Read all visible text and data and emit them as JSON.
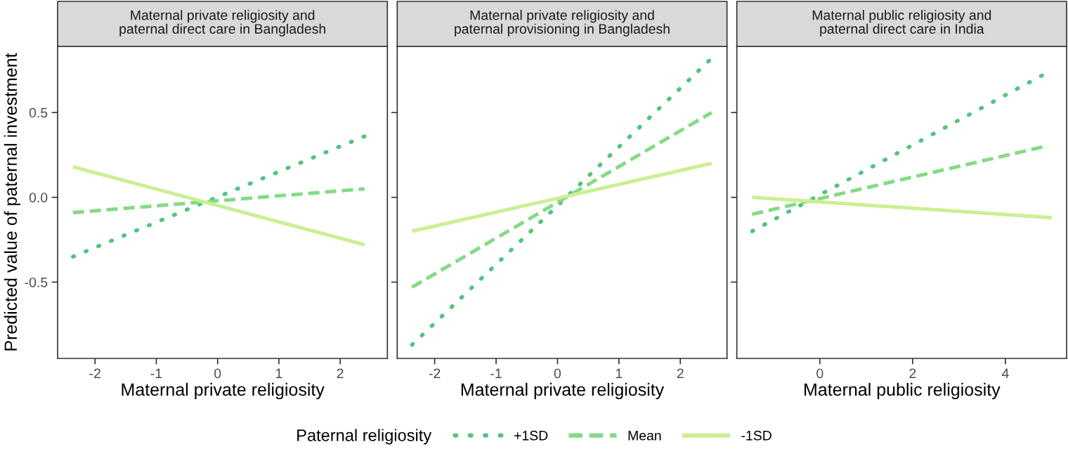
{
  "chart_data": [
    {
      "type": "line",
      "title": "Maternal private religiosity and\npaternal direct care in Bangladesh",
      "xlabel": "Maternal private religiosity",
      "ylabel": "Predicted value of paternal investment",
      "legend": "bottom",
      "legend_title": "Paternal religiosity",
      "xlim": [
        -2.61,
        2.77
      ],
      "xticks": [
        -2,
        -1,
        0,
        1,
        2
      ],
      "ylim": [
        -0.95,
        0.89
      ],
      "yticks": [
        -0.5,
        {
          "value": 0,
          "label": "0.0"
        },
        0.5
      ],
      "series": [
        {
          "name": "+1SD",
          "color": "#52c47c",
          "line_style": "dotted",
          "x": [
            -2.36,
            2.4
          ],
          "values": [
            -0.35,
            0.36
          ]
        },
        {
          "name": "Mean",
          "color": "#85da86",
          "line_style": "dashed",
          "x": [
            -2.36,
            2.4
          ],
          "values": [
            -0.09,
            0.05
          ]
        },
        {
          "name": "-1SD",
          "color": "#cbef92",
          "line_style": "solid",
          "x": [
            -2.36,
            2.4
          ],
          "values": [
            0.18,
            -0.28
          ]
        }
      ]
    },
    {
      "type": "line",
      "title": "Maternal private religiosity and\npaternal provisioning in Bangladesh",
      "xlabel": "Maternal private religiosity",
      "tick_labels": "x",
      "xlim": [
        -2.61,
        2.76
      ],
      "xticks": [
        -2,
        -1,
        0,
        1,
        2
      ],
      "ylim": [
        -0.95,
        0.89
      ],
      "series": [
        {
          "color": "#52c47c",
          "line_style": "dotted",
          "x": [
            -2.37,
            2.51
          ],
          "values": [
            -0.87,
            0.82
          ]
        },
        {
          "color": "#85da86",
          "line_style": "dashed",
          "x": [
            -2.37,
            2.51
          ],
          "values": [
            -0.53,
            0.5
          ]
        },
        {
          "color": "#cbef92",
          "line_style": "solid",
          "x": [
            -2.37,
            2.51
          ],
          "values": [
            -0.2,
            0.2
          ]
        }
      ]
    },
    {
      "type": "line",
      "title": "Maternal public religiosity and\npaternal direct care in India",
      "xlabel": "Maternal public religiosity",
      "tick_labels": "x",
      "xlim": [
        -1.79,
        5.32
      ],
      "xticks": [
        0,
        2,
        4
      ],
      "ylim": [
        -0.95,
        0.89
      ],
      "series": [
        {
          "color": "#52c47c",
          "line_style": "dotted",
          "x": [
            -1.46,
            4.8
          ],
          "values": [
            -0.2,
            0.72
          ]
        },
        {
          "color": "#85da86",
          "line_style": "dashed",
          "x": [
            -1.46,
            4.85
          ],
          "values": [
            -0.1,
            0.3
          ]
        },
        {
          "color": "#cbef92",
          "line_style": "solid",
          "x": [
            -1.46,
            5.0
          ],
          "values": [
            0.0,
            -0.12
          ]
        }
      ]
    }
  ]
}
